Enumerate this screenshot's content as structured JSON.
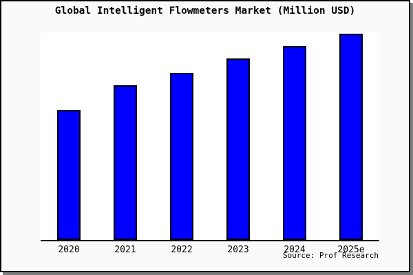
{
  "window": {
    "background_color": "#fafafa",
    "plot_background_color": "#ffffff",
    "border_color": "#000000",
    "shadow_color": "#7f7f7f"
  },
  "chart": {
    "title": "Global Intelligent Flowmeters Market (Million USD)",
    "source": "Source: Prof Research",
    "bar_color": "#0000ff",
    "bar_border_color": "#000000"
  },
  "chart_data": {
    "type": "bar",
    "title": "Global Intelligent Flowmeters Market (Million USD)",
    "categories": [
      "2020",
      "2021",
      "2022",
      "2023",
      "2024",
      "2025e"
    ],
    "values": [
      63,
      75,
      81,
      88,
      94,
      100
    ],
    "value_scale": "relative; y-axis is unlabeled, values estimated as percent of tallest bar",
    "xlabel": "",
    "ylabel": "",
    "ylim": [
      0,
      100
    ],
    "grid": false,
    "legend": false,
    "annotation": "Source: Prof Research"
  }
}
